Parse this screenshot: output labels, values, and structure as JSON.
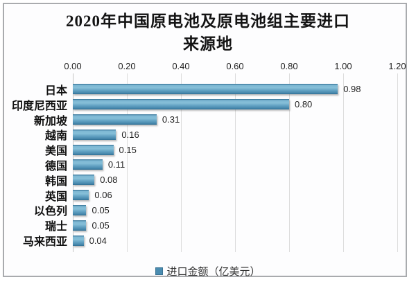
{
  "title": {
    "line1": "2020年中国原电池及原电池组主要进口",
    "line2": "来源地"
  },
  "chart_data": {
    "type": "bar",
    "orientation": "horizontal",
    "title": "2020年中国原电池及原电池组主要进口来源地",
    "categories": [
      "日本",
      "印度尼西亚",
      "新加坡",
      "越南",
      "美国",
      "德国",
      "韩国",
      "英国",
      "以色列",
      "瑞士",
      "马来西亚"
    ],
    "values": [
      0.98,
      0.8,
      0.31,
      0.16,
      0.15,
      0.11,
      0.08,
      0.06,
      0.05,
      0.05,
      0.04
    ],
    "value_labels": [
      "0.98",
      "0.80",
      "0.31",
      "0.16",
      "0.15",
      "0.11",
      "0.08",
      "0.06",
      "0.05",
      "0.05",
      "0.04"
    ],
    "xlim": [
      0,
      1.2
    ],
    "x_ticks": [
      "0.00",
      "0.20",
      "0.40",
      "0.60",
      "0.80",
      "1.00",
      "1.20"
    ],
    "x_axis_position": "top",
    "grid": true,
    "legend_position": "bottom",
    "series_name": "进口金额（亿美元）"
  },
  "legend": {
    "label": "进口金额（亿美元）"
  },
  "colors": {
    "bar": "#4a8cb0",
    "bar_edge": "#306e92",
    "gridline": "#dcdcdc",
    "frame_border": "#a9abae",
    "text": "#1f1f1f"
  }
}
